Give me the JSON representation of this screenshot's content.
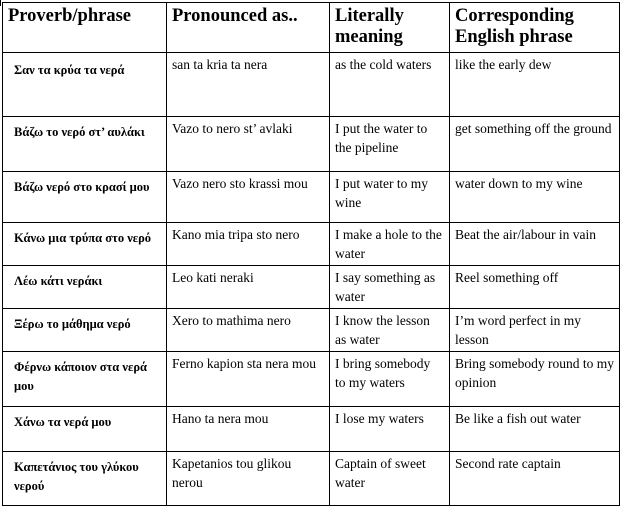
{
  "table": {
    "headers": [
      "Proverb/phrase",
      "Pronounced as..",
      "Literally meaning",
      "Corresponding English phrase"
    ],
    "rows": [
      [
        "Σαν τα κρύα τα νερά",
        "san ta kria ta nera",
        "as the cold waters",
        "like the early dew"
      ],
      [
        "Βάζω το νερό στ’ αυλάκι",
        "Vazo to nero st’ avlaki",
        "I put the water to the pipeline",
        "get something off the ground"
      ],
      [
        "Βάζω νερό στο κρασί μου",
        "Vazo nero sto krassi mou",
        "I put water to my wine",
        "water down to my wine"
      ],
      [
        "Κάνω μια τρύπα στο νερό",
        "Kano mia tripa sto nero",
        "I make a hole to the water",
        "Beat the air/labour in vain"
      ],
      [
        "Λέω κάτι νεράκι",
        "Leo kati neraki",
        "I say something as water",
        "Reel something off"
      ],
      [
        "Ξέρω το μάθημα νερό",
        "Xero to mathima nero",
        "I know the lesson as water",
        "I’m word perfect in my lesson"
      ],
      [
        "Φέρνω κάποιον στα νερά μου",
        "Ferno kapion sta nera mou",
        "I bring somebody to my waters",
        "Bring somebody round to my opinion"
      ],
      [
        "Χάνω τα νερά μου",
        "Hano ta nera mou",
        "I lose my waters",
        "Be like a fish out water"
      ],
      [
        "Καπετάνιος του γλύκου νερού",
        "Kapetanios tou glikou nerou",
        "Captain of sweet water",
        "Second rate captain"
      ]
    ]
  }
}
